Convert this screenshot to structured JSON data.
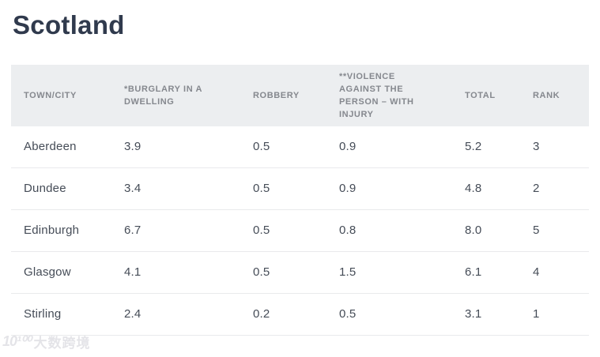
{
  "page": {
    "title": "Scotland"
  },
  "table": {
    "columns": [
      {
        "key": "town",
        "label": "TOWN/CITY"
      },
      {
        "key": "burglary",
        "label": "*BURGLARY IN A\nDWELLING"
      },
      {
        "key": "robbery",
        "label": "ROBBERY"
      },
      {
        "key": "violence",
        "label": "**VIOLENCE\nAGAINST THE\nPERSON – WITH\nINJURY"
      },
      {
        "key": "total",
        "label": "TOTAL"
      },
      {
        "key": "rank",
        "label": "RANK"
      }
    ],
    "rows": [
      {
        "town": "Aberdeen",
        "burglary": "3.9",
        "robbery": "0.5",
        "violence": "0.9",
        "total": "5.2",
        "rank": "3"
      },
      {
        "town": "Dundee",
        "burglary": "3.4",
        "robbery": "0.5",
        "violence": "0.9",
        "total": "4.8",
        "rank": "2"
      },
      {
        "town": "Edinburgh",
        "burglary": "6.7",
        "robbery": "0.5",
        "violence": "0.8",
        "total": "8.0",
        "rank": "5"
      },
      {
        "town": "Glasgow",
        "burglary": "4.1",
        "robbery": "0.5",
        "violence": "1.5",
        "total": "6.1",
        "rank": "4"
      },
      {
        "town": "Stirling",
        "burglary": "2.4",
        "robbery": "0.2",
        "violence": "0.5",
        "total": "3.1",
        "rank": "1"
      }
    ]
  },
  "watermark": {
    "logo": "10¹⁰⁰",
    "text": "大数跨境"
  },
  "colors": {
    "title": "#303a4d",
    "header_bg": "#eceef0",
    "header_text": "#85888e",
    "body_text": "#454c57",
    "row_border": "#e9eaec"
  }
}
